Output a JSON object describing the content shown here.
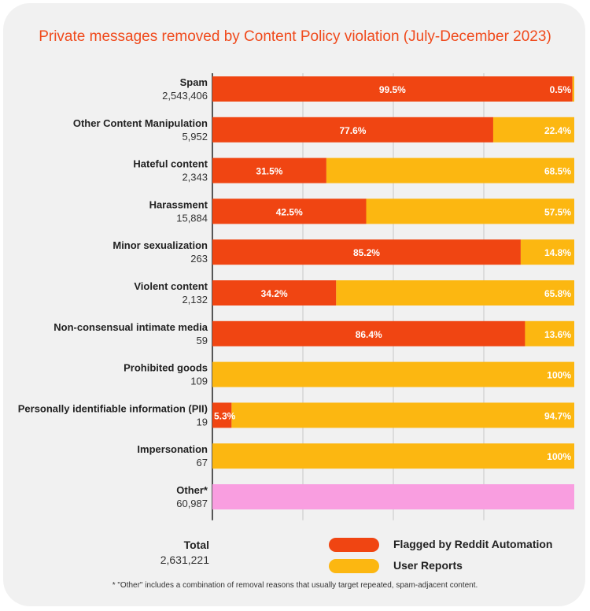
{
  "chart_data": {
    "type": "bar",
    "orientation": "horizontal",
    "stacked": true,
    "title": "Private messages removed by Content Policy violation (July-December 2023)",
    "categories": [
      {
        "label": "Spam",
        "count": "2,543,406"
      },
      {
        "label": "Other Content Manipulation",
        "count": "5,952"
      },
      {
        "label": "Hateful content",
        "count": "2,343"
      },
      {
        "label": "Harassment",
        "count": "15,884"
      },
      {
        "label": "Minor sexualization",
        "count": "263"
      },
      {
        "label": "Violent content",
        "count": "2,132"
      },
      {
        "label": "Non-consensual intimate media",
        "count": "59"
      },
      {
        "label": "Prohibited goods",
        "count": "109"
      },
      {
        "label": "Personally identifiable information (PII)",
        "count": "19"
      },
      {
        "label": "Impersonation",
        "count": "67"
      },
      {
        "label": "Other*",
        "count": "60,987"
      }
    ],
    "series": [
      {
        "name": "Flagged by Reddit Automation",
        "color": "#f04512",
        "values": [
          99.5,
          77.6,
          31.5,
          42.5,
          85.2,
          34.2,
          86.4,
          0,
          5.3,
          0,
          null
        ],
        "labels": [
          "99.5%",
          "77.6%",
          "31.5%",
          "42.5%",
          "85.2%",
          "34.2%",
          "86.4%",
          "",
          "5.3%",
          "",
          ""
        ]
      },
      {
        "name": "User Reports",
        "color": "#fcb711",
        "values": [
          0.5,
          22.4,
          68.5,
          57.5,
          14.8,
          65.8,
          13.6,
          100,
          94.7,
          100,
          null
        ],
        "labels": [
          "0.5%",
          "22.4%",
          "68.5%",
          "57.5%",
          "14.8%",
          "65.8%",
          "13.6%",
          "100%",
          "94.7%",
          "100%",
          ""
        ]
      }
    ],
    "other_bar_color": "#f99ee0",
    "xlim": [
      0,
      100
    ],
    "grid": true,
    "legend_position": "bottom-right",
    "total": {
      "label": "Total",
      "value": "2,631,221"
    },
    "footnote": "* \"Other\" includes a combination of removal reasons that usually target repeated, spam-adjacent content."
  }
}
